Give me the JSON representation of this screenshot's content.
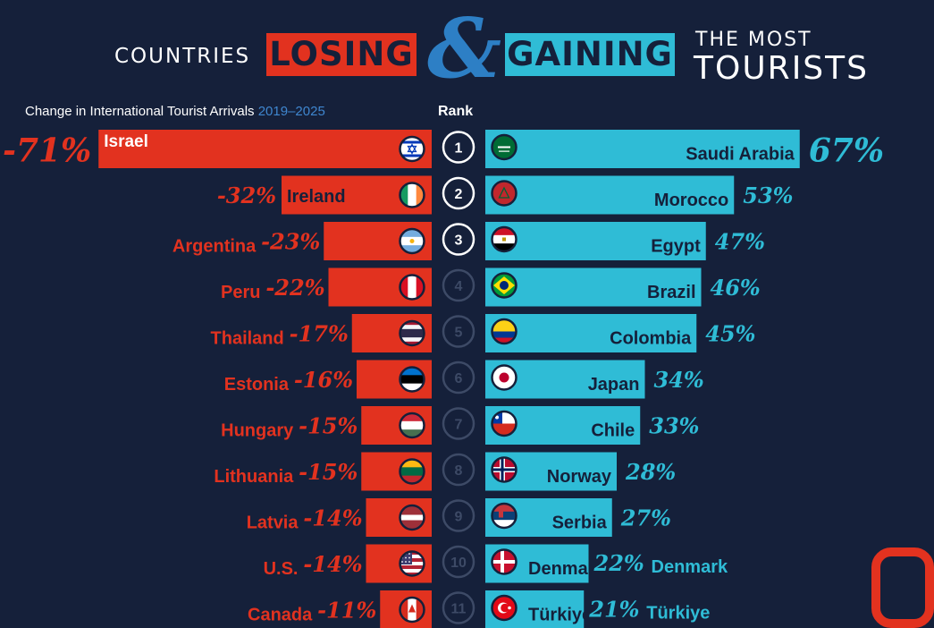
{
  "header": {
    "countries": "COUNTRIES",
    "losing": "LOSING",
    "amp": "&",
    "gaining": "GAINING",
    "the_most": "THE MOST",
    "tourists": "TOURISTS"
  },
  "subtitle": {
    "text": "Change in International Tourist Arrivals",
    "years": "2019–2025"
  },
  "rank_label": "Rank",
  "colors": {
    "losing": "#e2321f",
    "gaining": "#2fbcd6",
    "background": "#15203a",
    "years": "#3f86cf"
  },
  "chart_data": {
    "type": "bar",
    "orientation": "horizontal-diverging",
    "ranks": [
      "1",
      "2",
      "3",
      "4",
      "5",
      "6",
      "7",
      "8",
      "9",
      "10",
      "11"
    ],
    "losing": {
      "name": "LOSING",
      "countries": [
        "Israel",
        "Ireland",
        "Argentina",
        "Peru",
        "Thailand",
        "Estonia",
        "Hungary",
        "Lithuania",
        "Latvia",
        "U.S.",
        "Canada"
      ],
      "values": [
        -71,
        -32,
        -23,
        -22,
        -17,
        -16,
        -15,
        -15,
        -14,
        -14,
        -11
      ],
      "labels": [
        "-71%",
        "-32%",
        "-23%",
        "-22%",
        "-17%",
        "-16%",
        "-15%",
        "-15%",
        "-14%",
        "-14%",
        "-11%"
      ],
      "flag_icons": [
        "israel-flag-icon",
        "ireland-flag-icon",
        "argentina-flag-icon",
        "peru-flag-icon",
        "thailand-flag-icon",
        "estonia-flag-icon",
        "hungary-flag-icon",
        "lithuania-flag-icon",
        "latvia-flag-icon",
        "us-flag-icon",
        "canada-flag-icon"
      ]
    },
    "gaining": {
      "name": "GAINING",
      "countries": [
        "Saudi Arabia",
        "Morocco",
        "Egypt",
        "Brazil",
        "Colombia",
        "Japan",
        "Chile",
        "Norway",
        "Serbia",
        "Denmark",
        "Türkiye"
      ],
      "values": [
        67,
        53,
        47,
        46,
        45,
        34,
        33,
        28,
        27,
        22,
        21
      ],
      "labels": [
        "67%",
        "53%",
        "47%",
        "46%",
        "45%",
        "34%",
        "33%",
        "28%",
        "27%",
        "22%",
        "21%"
      ],
      "flag_icons": [
        "saudi-arabia-flag-icon",
        "morocco-flag-icon",
        "egypt-flag-icon",
        "brazil-flag-icon",
        "colombia-flag-icon",
        "japan-flag-icon",
        "chile-flag-icon",
        "norway-flag-icon",
        "serbia-flag-icon",
        "denmark-flag-icon",
        "turkiye-flag-icon"
      ]
    }
  }
}
